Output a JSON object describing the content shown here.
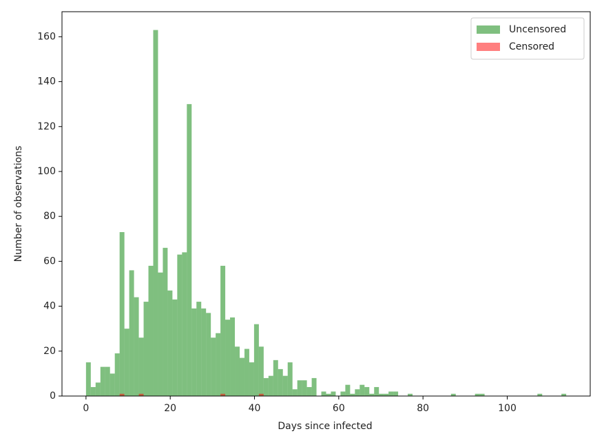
{
  "chart_data": {
    "type": "histogram",
    "xlabel": "Days since infected",
    "ylabel": "Number of observations",
    "bins": [
      0,
      1.14,
      2.28,
      3.42,
      4.56,
      5.7,
      6.84,
      7.98,
      9.12,
      10.26,
      11.4,
      12.54,
      13.68,
      14.82,
      15.96,
      17.1,
      18.24,
      19.38,
      20.52,
      21.66,
      22.8,
      23.94,
      25.08,
      26.22,
      27.36,
      28.5,
      29.64,
      30.78,
      31.92,
      33.06,
      34.2,
      35.34,
      36.48,
      37.62,
      38.76,
      39.9,
      41.04,
      42.18,
      43.32,
      44.46,
      45.6,
      46.74,
      47.88,
      49.02,
      50.16,
      51.3,
      52.44,
      53.58,
      54.72,
      55.86,
      57,
      58.14,
      59.28,
      60.42,
      61.56,
      62.7,
      63.84,
      64.98,
      66.12,
      67.26,
      68.4,
      69.54,
      70.68,
      71.82,
      72.96,
      74.1,
      75.24,
      76.38,
      77.52,
      78.66,
      79.8,
      80.94,
      82.08,
      83.22,
      84.36,
      85.5,
      86.64,
      87.78,
      88.92,
      90.06,
      91.2,
      92.34,
      93.48,
      94.62,
      95.76,
      96.9,
      98.04,
      99.18,
      100.32,
      101.46,
      102.6,
      103.74,
      104.88,
      106.02,
      107.16,
      108.3,
      109.44,
      110.58,
      111.72,
      112.86,
      114
    ],
    "series": [
      {
        "name": "Uncensored",
        "color": "green",
        "values": [
          15,
          4,
          6,
          13,
          13,
          10,
          19,
          73,
          30,
          56,
          44,
          26,
          42,
          58,
          163,
          55,
          66,
          47,
          43,
          63,
          64,
          130,
          39,
          42,
          39,
          37,
          26,
          28,
          58,
          34,
          35,
          22,
          17,
          21,
          15,
          32,
          22,
          8,
          9,
          16,
          12,
          9,
          15,
          3,
          7,
          7,
          4,
          8,
          0,
          2,
          1,
          2,
          0,
          2,
          5,
          1,
          3,
          5,
          4,
          1,
          4,
          1,
          1,
          2,
          2,
          0,
          0,
          1,
          0,
          0,
          0,
          0,
          0,
          0,
          0,
          0,
          1,
          0,
          0,
          0,
          0,
          1,
          1,
          0,
          0,
          0,
          0,
          0,
          0,
          0,
          0,
          0,
          0,
          0,
          1,
          0,
          0,
          0,
          0,
          1
        ]
      },
      {
        "name": "Censored",
        "color": "red",
        "values": [
          0,
          0,
          0,
          0,
          0,
          0,
          0,
          1,
          0,
          0,
          0,
          1,
          0,
          0,
          0,
          0,
          0,
          0,
          0,
          0,
          0,
          0,
          0,
          0,
          0,
          0,
          0,
          0,
          1,
          0,
          0,
          0,
          0,
          0,
          0,
          0,
          1,
          0,
          0,
          0,
          0,
          0,
          0,
          0,
          0,
          0,
          0,
          0,
          0,
          0,
          0,
          0,
          0,
          0,
          0,
          0,
          0,
          0,
          0,
          0,
          0,
          0,
          0,
          0,
          0,
          0,
          0,
          0,
          0,
          0,
          0,
          0,
          0,
          0,
          0,
          0,
          0,
          0,
          0,
          0,
          0,
          0,
          0,
          0,
          0,
          0,
          0,
          0,
          0,
          0,
          0,
          0,
          0,
          0,
          0,
          0,
          0,
          0,
          0,
          0
        ]
      }
    ],
    "alpha": 0.5,
    "xlim": [
      -5.7,
      119.7
    ],
    "ylim": [
      0,
      171.15
    ],
    "xticks": [
      0,
      20,
      40,
      60,
      80,
      100
    ],
    "yticks": [
      0,
      20,
      40,
      60,
      80,
      100,
      120,
      140,
      160
    ],
    "grid": false,
    "legend": "upper right"
  }
}
